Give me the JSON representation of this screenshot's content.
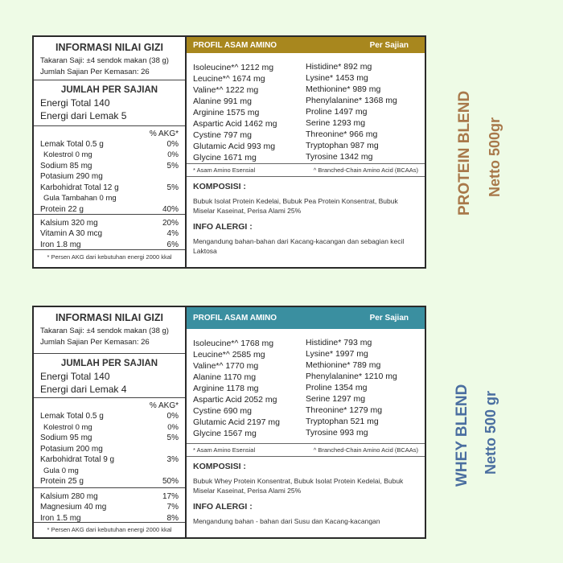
{
  "colors": {
    "background": "#eefbe6",
    "protein_header": "#a8871e",
    "whey_header": "#3a8fa0",
    "protein_side": "#a8784a",
    "whey_side": "#4a6ea0"
  },
  "products": [
    {
      "side_title": "PROTEIN BLEND",
      "side_netto": "Netto 500gr",
      "nutrition": {
        "title": "INFORMASI NILAI GIZI",
        "serving": "Takaran Saji:  ±4 sendok makan (38 g)",
        "servings_per_pack": "Jumlah Sajian Per Kemasan:  26",
        "per_serving_title": "JUMLAH PER SAJIAN",
        "energy_total": "Energi Total  140",
        "energy_fat": "Energi dari Lemak  5",
        "akg_header": "% AKG*",
        "rows": [
          {
            "label": "Lemak Total  0.5 g",
            "akg": "0%",
            "sub": false
          },
          {
            "label": "Kolestrol 0 mg",
            "akg": "0%",
            "sub": true
          },
          {
            "label": "Sodium  85 mg",
            "akg": "5%",
            "sub": false
          },
          {
            "label": "Potasium 290 mg",
            "akg": "",
            "sub": false
          },
          {
            "label": "Karbohidrat Total  12 g",
            "akg": "5%",
            "sub": false
          },
          {
            "label": "Gula Tambahan 0 mg",
            "akg": "",
            "sub": true
          },
          {
            "label": "Protein  22 g",
            "akg": "40%",
            "sub": false
          }
        ],
        "minerals": [
          {
            "label": "Kalsium  320 mg",
            "akg": "20%"
          },
          {
            "label": "Vitamin A  30 mcg",
            "akg": "4%"
          },
          {
            "label": "Iron  1.8 mg",
            "akg": "6%"
          }
        ],
        "footnote": "* Persen AKG dari kebutuhan energi 2000 kkal"
      },
      "amino": {
        "title": "PROFIL ASAM AMINO",
        "per": "Per Sajian",
        "left": [
          "Isoleucine*^  1212 mg",
          "Leucine*^  1674 mg",
          "Valine*^  1222 mg",
          "Alanine  991 mg",
          "Arginine  1575 mg",
          "Aspartic Acid  1462 mg",
          "Cystine  797 mg",
          "Glutamic Acid  993 mg",
          "Glycine  1671 mg"
        ],
        "right": [
          "Histidine*  892 mg",
          "Lysine*  1453 mg",
          "Methionine*  989 mg",
          "Phenylalanine*  1368 mg",
          "Proline  1497 mg",
          "Serine  1293 mg",
          "Threonine*  966 mg",
          "Tryptophan  987 mg",
          "Tyrosine  1342 mg"
        ],
        "note_essential": "* Asam Amino Esensial",
        "note_bcaa": "^ Branched-Chain Amino Acid (BCAAs)"
      },
      "composition_title": "KOMPOSISI :",
      "composition": "Bubuk Isolat Protein Kedelai, Bubuk Pea Protein Konsentrat, Bubuk Miselar Kaseinat, Perisa Alami 25%",
      "allergy_title": "INFO ALERGI :",
      "allergy": "Mengandung bahan-bahan dari Kacang-kacangan dan sebagian kecil Laktosa"
    },
    {
      "side_title": "WHEY BLEND",
      "side_netto": "Netto 500 gr",
      "nutrition": {
        "title": "INFORMASI NILAI GIZI",
        "serving": "Takaran Saji:  ±4 sendok makan (38 g)",
        "servings_per_pack": "Jumlah Sajian Per Kemasan:  26",
        "per_serving_title": "JUMLAH PER SAJIAN",
        "energy_total": "Energi Total  140",
        "energy_fat": "Energi dari Lemak  4",
        "akg_header": "% AKG*",
        "rows": [
          {
            "label": "Lemak Total  0.5 g",
            "akg": "0%",
            "sub": false
          },
          {
            "label": "Kolestrol 0 mg",
            "akg": "0%",
            "sub": true
          },
          {
            "label": "Sodium  95 mg",
            "akg": "5%",
            "sub": false
          },
          {
            "label": "Potasium 200 mg",
            "akg": "",
            "sub": false
          },
          {
            "label": "Karbohidrat Total  9 g",
            "akg": "3%",
            "sub": false
          },
          {
            "label": "Gula 0 mg",
            "akg": "",
            "sub": true
          },
          {
            "label": "Protein  25 g",
            "akg": "50%",
            "sub": false
          }
        ],
        "minerals": [
          {
            "label": "Kalsium  280 mg",
            "akg": "17%"
          },
          {
            "label": "Magnesium  40 mg",
            "akg": "7%"
          },
          {
            "label": "Iron  1.5 mg",
            "akg": "8%"
          }
        ],
        "footnote": "* Persen AKG dari kebutuhan energi 2000 kkal"
      },
      "amino": {
        "title": "PROFIL ASAM AMINO",
        "per": "Per Sajian",
        "left": [
          "Isoleucine*^  1768 mg",
          "Leucine*^  2585 mg",
          "Valine*^  1770 mg",
          "Alanine  1170 mg",
          "Arginine  1178 mg",
          "Aspartic Acid  2052 mg",
          "Cystine  690 mg",
          "Glutamic Acid  2197 mg",
          "Glycine  1567 mg"
        ],
        "right": [
          "Histidine*  793 mg",
          "Lysine*  1997 mg",
          "Methionine*  789 mg",
          "Phenylalanine*  1210 mg",
          "Proline  1354 mg",
          "Serine  1297 mg",
          "Threonine*  1279 mg",
          "Tryptophan  521 mg",
          "Tyrosine  993 mg"
        ],
        "note_essential": "* Asam Amino Esensial",
        "note_bcaa": "^ Branched-Chain Amino Acid (BCAAs)"
      },
      "composition_title": "KOMPOSISI :",
      "composition": "Bubuk Whey Protein Konsentrat, Bubuk Isolat Protein Kedelai, Bubuk Miselar Kaseinat, Perisa Alami 25%",
      "allergy_title": "INFO ALERGI :",
      "allergy": "Mengandung bahan - bahan dari Susu dan Kacang-kacangan"
    }
  ]
}
